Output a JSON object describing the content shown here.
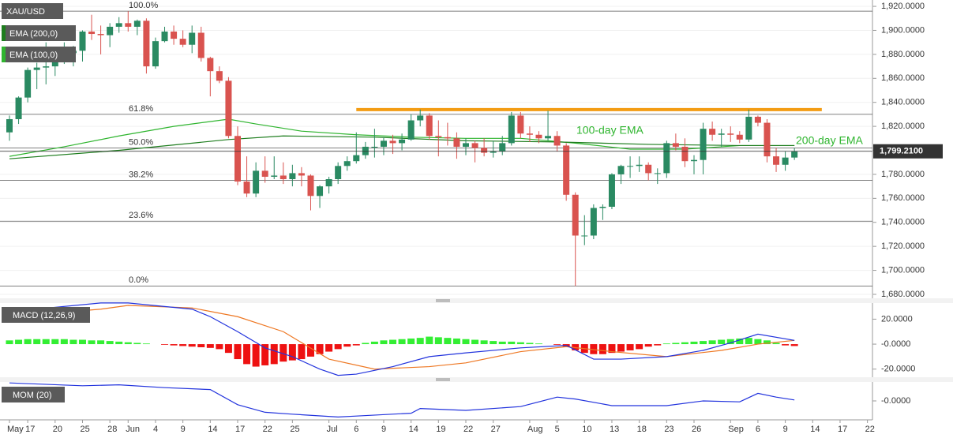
{
  "chart_data": [
    {
      "type": "candlestick",
      "title": "XAU/USD",
      "indicators": [
        {
          "name": "EMA (200,0)",
          "color": "#1e7d1e"
        },
        {
          "name": "EMA (100,0)",
          "color": "#2fb52f"
        }
      ],
      "categories": [
        "May",
        null,
        "17",
        null,
        null,
        "20",
        null,
        null,
        "25",
        null,
        null,
        "28",
        null,
        "Jun",
        null,
        null,
        "4",
        null,
        null,
        "9",
        null,
        null,
        "14",
        null,
        null,
        "17",
        null,
        null,
        "22",
        null,
        null,
        "25",
        null,
        null,
        null,
        "Jul",
        null,
        null,
        "6",
        null,
        null,
        "9",
        null,
        null,
        "14",
        null,
        null,
        "19",
        null,
        null,
        "22",
        null,
        null,
        "27",
        null,
        null,
        null,
        "Aug",
        null,
        null,
        "5",
        null,
        null,
        "10",
        null,
        null,
        "13",
        null,
        null,
        "18",
        null,
        null,
        "23",
        null,
        null,
        "26",
        null,
        null,
        null,
        "Sep",
        null,
        null,
        "6",
        null,
        null,
        "9",
        null,
        null,
        "14",
        null,
        null,
        "17",
        null,
        null,
        "22"
      ],
      "ohlc": [
        [
          1815,
          1829,
          1808,
          1826
        ],
        [
          1826,
          1845,
          1822,
          1844
        ],
        [
          1844,
          1869,
          1840,
          1867
        ],
        [
          1867,
          1873,
          1851,
          1869
        ],
        [
          1869,
          1890,
          1855,
          1870
        ],
        [
          1870,
          1882,
          1862,
          1877
        ],
        [
          1877,
          1890,
          1872,
          1881
        ],
        [
          1881,
          1887,
          1870,
          1883
        ],
        [
          1883,
          1900,
          1874,
          1899
        ],
        [
          1899,
          1913,
          1892,
          1897
        ],
        [
          1897,
          1904,
          1880,
          1896
        ],
        [
          1896,
          1906,
          1886,
          1903
        ],
        [
          1903,
          1911,
          1898,
          1906
        ],
        [
          1906,
          1916,
          1899,
          1903
        ],
        [
          1903,
          1909,
          1896,
          1908
        ],
        [
          1908,
          1910,
          1864,
          1870
        ],
        [
          1870,
          1894,
          1868,
          1891
        ],
        [
          1891,
          1903,
          1890,
          1899
        ],
        [
          1899,
          1904,
          1888,
          1893
        ],
        [
          1893,
          1900,
          1886,
          1888
        ],
        [
          1888,
          1904,
          1881,
          1898
        ],
        [
          1898,
          1903,
          1874,
          1877
        ],
        [
          1877,
          1878,
          1845,
          1866
        ],
        [
          1866,
          1870,
          1856,
          1858
        ],
        [
          1858,
          1861,
          1810,
          1812
        ],
        [
          1812,
          1820,
          1771,
          1774
        ],
        [
          1774,
          1795,
          1761,
          1764
        ],
        [
          1764,
          1790,
          1761,
          1783
        ],
        [
          1783,
          1795,
          1773,
          1778
        ],
        [
          1778,
          1795,
          1776,
          1779
        ],
        [
          1779,
          1790,
          1772,
          1776
        ],
        [
          1776,
          1788,
          1770,
          1781
        ],
        [
          1781,
          1786,
          1770,
          1779
        ],
        [
          1779,
          1780,
          1750,
          1762
        ],
        [
          1762,
          1771,
          1752,
          1770
        ],
        [
          1770,
          1778,
          1764,
          1776
        ],
        [
          1776,
          1790,
          1772,
          1787
        ],
        [
          1787,
          1795,
          1783,
          1791
        ],
        [
          1791,
          1815,
          1789,
          1796
        ],
        [
          1796,
          1807,
          1793,
          1803
        ],
        [
          1803,
          1818,
          1794,
          1803
        ],
        [
          1803,
          1811,
          1796,
          1808
        ],
        [
          1808,
          1813,
          1797,
          1806
        ],
        [
          1806,
          1814,
          1800,
          1809
        ],
        [
          1809,
          1830,
          1808,
          1825
        ],
        [
          1825,
          1834,
          1820,
          1829
        ],
        [
          1829,
          1831,
          1809,
          1812
        ],
        [
          1812,
          1825,
          1795,
          1811
        ],
        [
          1811,
          1823,
          1804,
          1810
        ],
        [
          1810,
          1815,
          1793,
          1803
        ],
        [
          1803,
          1810,
          1796,
          1806
        ],
        [
          1806,
          1808,
          1790,
          1802
        ],
        [
          1802,
          1810,
          1795,
          1798
        ],
        [
          1798,
          1808,
          1794,
          1799
        ],
        [
          1799,
          1812,
          1796,
          1806
        ],
        [
          1806,
          1832,
          1804,
          1829
        ],
        [
          1829,
          1832,
          1810,
          1814
        ],
        [
          1814,
          1820,
          1807,
          1813
        ],
        [
          1813,
          1816,
          1806,
          1810
        ],
        [
          1810,
          1833,
          1808,
          1812
        ],
        [
          1812,
          1816,
          1799,
          1804
        ],
        [
          1804,
          1806,
          1758,
          1763
        ],
        [
          1763,
          1765,
          1687,
          1729
        ],
        [
          1729,
          1746,
          1721,
          1729
        ],
        [
          1729,
          1755,
          1726,
          1752
        ],
        [
          1752,
          1755,
          1742,
          1753
        ],
        [
          1753,
          1781,
          1751,
          1780
        ],
        [
          1780,
          1788,
          1772,
          1787
        ],
        [
          1787,
          1795,
          1777,
          1787
        ],
        [
          1787,
          1795,
          1782,
          1788
        ],
        [
          1788,
          1790,
          1775,
          1781
        ],
        [
          1781,
          1785,
          1772,
          1781
        ],
        [
          1781,
          1808,
          1777,
          1806
        ],
        [
          1806,
          1814,
          1800,
          1803
        ],
        [
          1803,
          1810,
          1786,
          1791
        ],
        [
          1791,
          1796,
          1780,
          1792
        ],
        [
          1792,
          1823,
          1780,
          1818
        ],
        [
          1818,
          1824,
          1808,
          1813
        ],
        [
          1813,
          1818,
          1803,
          1814
        ],
        [
          1814,
          1820,
          1807,
          1813
        ],
        [
          1813,
          1816,
          1806,
          1809
        ],
        [
          1809,
          1834,
          1807,
          1828
        ],
        [
          1828,
          1829,
          1820,
          1823
        ],
        [
          1823,
          1826,
          1790,
          1795
        ],
        [
          1795,
          1802,
          1782,
          1788
        ],
        [
          1788,
          1799,
          1783,
          1794
        ],
        [
          1794,
          1802,
          1792,
          1799
        ],
        null,
        null,
        null,
        null,
        null,
        null,
        null,
        null
      ],
      "up_color": "#2a8a62",
      "down_color": "#d9534f",
      "ema_series": [
        {
          "color": "#2fb52f",
          "x": [
            0,
            6,
            12,
            18,
            24,
            27,
            32,
            38,
            44,
            50,
            56,
            62,
            68,
            74,
            80,
            86
          ],
          "values": [
            1795,
            1803,
            1812,
            1820,
            1826,
            1822,
            1816,
            1813,
            1811,
            1810,
            1810,
            1806,
            1801,
            1801,
            1804,
            1804
          ]
        },
        {
          "color": "#1e7d1e",
          "x": [
            0,
            12,
            24,
            30,
            40,
            50,
            60,
            70,
            80,
            86
          ],
          "values": [
            1793,
            1800,
            1809,
            1812,
            1811,
            1808,
            1807,
            1805,
            1804,
            1804
          ]
        }
      ],
      "annotations": [
        "100-day EMA",
        "200-day EMA"
      ],
      "annotation_color": "#2fb52f",
      "fib_levels": [
        {
          "label": "100.0%",
          "level": 1916
        },
        {
          "label": "61.8%",
          "level": 1830
        },
        {
          "label": "50.0%",
          "level": 1802
        },
        {
          "label": "38.2%",
          "level": 1775
        },
        {
          "label": "23.6%",
          "level": 1741
        },
        {
          "label": "0.0%",
          "level": 1687
        }
      ],
      "resistance": {
        "level": 1834,
        "x": [
          38,
          89
        ],
        "color": "#f39c12"
      },
      "last_price": {
        "value": 1799.21,
        "label": "1,799.2100"
      },
      "ylim": [
        1676.7,
        1925.3
      ],
      "yticks": [
        {
          "value": 1680,
          "label": "1,680.0000"
        },
        {
          "value": 1700,
          "label": "1,700.0000"
        },
        {
          "value": 1720,
          "label": "1,720.0000"
        },
        {
          "value": 1740,
          "label": "1,740.0000"
        },
        {
          "value": 1760,
          "label": "1,760.0000"
        },
        {
          "value": 1780,
          "label": "1,780.0000"
        },
        {
          "value": 1800,
          "label": "1,800.0000"
        },
        {
          "value": 1820,
          "label": "1,820.0000"
        },
        {
          "value": 1840,
          "label": "1,840.0000"
        },
        {
          "value": 1860,
          "label": "1,860.0000"
        },
        {
          "value": 1880,
          "label": "1,880.0000"
        },
        {
          "value": 1900,
          "label": "1,900.0000"
        },
        {
          "value": 1920,
          "label": "1,920.0000"
        }
      ],
      "grid": true
    },
    {
      "type": "macd",
      "title": "MACD (12,26,9)",
      "histogram": {
        "positive_color": "#33ee33",
        "negative_color": "#ee1111",
        "values": [
          3,
          3.5,
          4,
          4,
          4,
          4,
          4,
          3.5,
          3.5,
          3,
          3,
          2.5,
          2,
          1.5,
          1,
          0.5,
          0,
          -0.5,
          -1,
          -1.5,
          -2,
          -2.5,
          -3,
          -4,
          -7,
          -12,
          -16,
          -18,
          -17,
          -16,
          -14,
          -13,
          -12,
          -10,
          -8,
          -6,
          -4,
          -2,
          -1,
          1,
          2,
          3,
          3.5,
          4,
          4.5,
          5,
          6,
          5.5,
          5,
          4.5,
          4,
          3.5,
          3,
          2.5,
          2,
          2,
          1.5,
          1,
          0.5,
          0,
          -0.5,
          -2,
          -5,
          -7,
          -8,
          -8,
          -7,
          -6,
          -5,
          -4,
          -2,
          -1,
          0.5,
          1,
          1.5,
          2,
          2.5,
          3,
          3.5,
          4,
          4.5,
          5,
          4,
          3,
          1,
          -1,
          -1.5,
          null,
          null,
          null,
          null,
          null,
          null,
          null,
          null
        ]
      },
      "macd_line": {
        "color": "#2233dd",
        "x": [
          0,
          10,
          13,
          20,
          22,
          25,
          28,
          31,
          34,
          36,
          38,
          42,
          46,
          50,
          56,
          61,
          64,
          67,
          72,
          76,
          79,
          82,
          86
        ],
        "values": [
          26,
          33,
          33,
          28,
          22,
          10,
          -3,
          -10,
          -20,
          -25,
          -24,
          -18,
          -10,
          -7,
          -3,
          -1,
          -12,
          -12,
          -10,
          -5,
          1,
          8,
          3
        ]
      },
      "signal_line": {
        "color": "#ee7722",
        "x": [
          0,
          10,
          13,
          20,
          25,
          30,
          35,
          40,
          46,
          50,
          56,
          61,
          66,
          72,
          78,
          82,
          86
        ],
        "values": [
          22,
          28,
          31,
          29,
          22,
          10,
          -12,
          -20,
          -18,
          -15,
          -6,
          -2,
          -6,
          -10,
          -5,
          0,
          3
        ]
      },
      "ylim": [
        -26.5,
        32.9
      ],
      "yticks": [
        {
          "value": 20,
          "label": "20.0000"
        },
        {
          "value": 0,
          "label": "-0.0000"
        },
        {
          "value": -20,
          "label": "-20.0000"
        }
      ]
    },
    {
      "type": "line",
      "title": "MOM (20)",
      "series": [
        {
          "color": "#2233dd",
          "x": [
            0,
            8,
            12,
            17,
            22,
            25,
            28,
            31,
            36,
            38,
            44,
            45,
            50,
            56,
            60,
            62,
            66,
            72,
            76,
            80,
            82,
            84,
            86
          ],
          "values": [
            95,
            80,
            85,
            70,
            60,
            -20,
            -60,
            -70,
            -85,
            -80,
            -65,
            -40,
            -50,
            -30,
            20,
            10,
            -25,
            -25,
            0,
            -5,
            40,
            20,
            5
          ]
        }
      ],
      "ylim": [
        -100,
        100
      ],
      "yticks": [
        {
          "value": 0,
          "label": "-0.0000"
        }
      ]
    }
  ]
}
